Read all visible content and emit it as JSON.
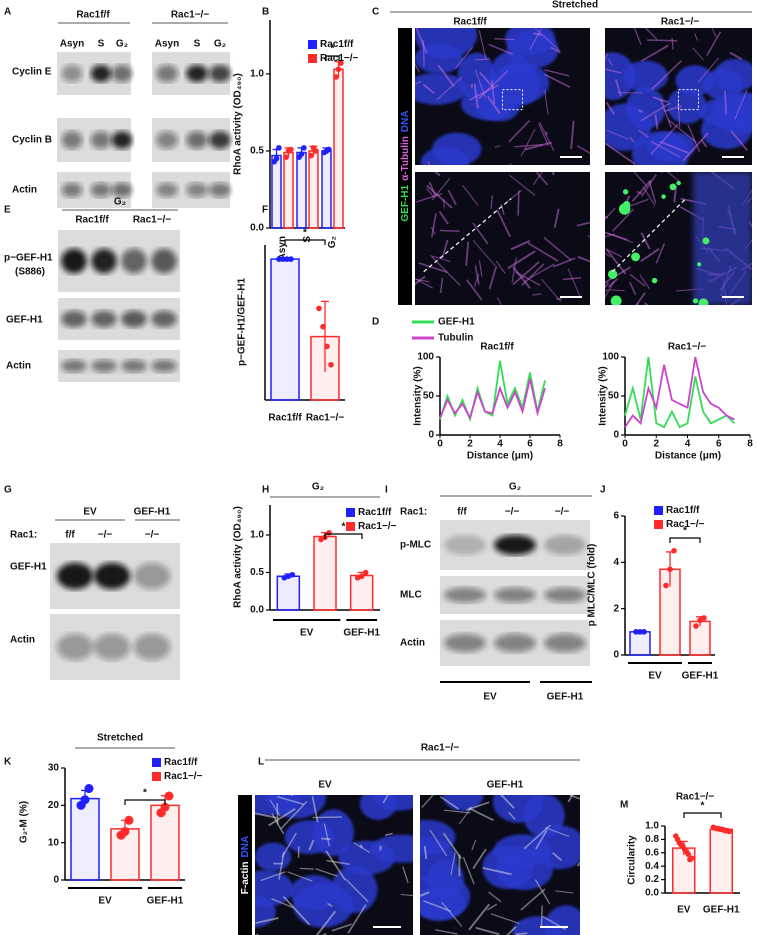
{
  "figure": {
    "panel_labels": [
      "A",
      "B",
      "C",
      "D",
      "E",
      "F",
      "G",
      "H",
      "I",
      "J",
      "K",
      "L",
      "M"
    ],
    "genotypes": {
      "wt": "Rac1f/f",
      "ko": "Rac1−/−"
    },
    "panel_A": {
      "lanes": [
        "Asyn",
        "S",
        "G₂"
      ],
      "rows": [
        "Cyclin E",
        "Cyclin B",
        "Actin"
      ]
    },
    "panel_C": {
      "header": "Stretched",
      "stain": [
        "GEF-H1",
        "α-Tubulin",
        "DNA"
      ]
    },
    "panel_E": {
      "header": "G₂",
      "rows": [
        "p−GEF-H1",
        "(S886)",
        "GEF-H1",
        "Actin"
      ]
    },
    "panel_G": {
      "groups": [
        "EV",
        "GEF-H1"
      ],
      "row_label": "Rac1:",
      "lanes": [
        "f/f",
        "−/−",
        "−/−"
      ],
      "rows": [
        "GEF-H1",
        "Actin"
      ]
    },
    "panel_I": {
      "header": "G₂",
      "row_label": "Rac1:",
      "lanes": [
        "f/f",
        "−/−",
        "−/−"
      ],
      "rows": [
        "p-MLC",
        "MLC",
        "Actin"
      ],
      "groups": [
        "EV",
        "GEF-H1"
      ]
    },
    "panel_L": {
      "header": "Rac1−/−",
      "columns": [
        "EV",
        "GEF-H1"
      ],
      "stain": [
        "F-actin",
        "DNA"
      ]
    }
  },
  "chart_data": [
    {
      "type": "bar",
      "categories": [
        "Asyn",
        "S",
        "G₂"
      ],
      "ylabel": "RhoA activity  (OD₄₉₀)",
      "ylim": [
        0,
        1.35
      ],
      "yticks": [
        {
          "value": 0,
          "label": "0.0"
        },
        {
          "value": 0.5,
          "label": "0.5"
        },
        {
          "value": 1,
          "label": "1.0"
        }
      ],
      "series": [
        {
          "name": "Rac1f/f",
          "color": "#1f1fff",
          "values": [
            0.47,
            0.49,
            0.5
          ],
          "errors": [
            0.04,
            0.03,
            0.02
          ],
          "points": [
            [
              0.43,
              0.45,
              0.52
            ],
            [
              0.46,
              0.48,
              0.52
            ],
            [
              0.49,
              0.5,
              0.51
            ]
          ]
        },
        {
          "name": "Rac1−/−",
          "color": "#ff2a2a",
          "values": [
            0.49,
            0.5,
            1.03
          ],
          "errors": [
            0.03,
            0.03,
            0.05
          ],
          "points": [
            [
              0.46,
              0.5,
              0.51
            ],
            [
              0.47,
              0.52,
              0.5
            ],
            [
              0.98,
              1.03,
              1.07
            ]
          ]
        }
      ],
      "annotations": [
        "*"
      ]
    },
    {
      "type": "line",
      "title": "Rac1f/f",
      "xlabel": "Distance (μm)",
      "ylabel": "Intensity (%)",
      "legend": true,
      "x": [
        0,
        0.5,
        1,
        1.5,
        2,
        2.5,
        3,
        3.5,
        4,
        4.5,
        5,
        5.5,
        6,
        6.5,
        7
      ],
      "xlim": [
        0,
        8
      ],
      "xticks": [
        0,
        2,
        4,
        6,
        8
      ],
      "ylim": [
        0,
        100
      ],
      "yticks": [
        0,
        50,
        100
      ],
      "series": [
        {
          "name": "GEF-H1",
          "color": "#33dd55",
          "values": [
            20,
            50,
            25,
            45,
            20,
            60,
            30,
            25,
            95,
            40,
            60,
            35,
            80,
            30,
            70
          ]
        },
        {
          "name": "Tubulin",
          "color": "#cc44cc",
          "values": [
            22,
            45,
            28,
            40,
            22,
            55,
            30,
            28,
            60,
            35,
            55,
            30,
            72,
            28,
            60
          ]
        }
      ]
    },
    {
      "type": "line",
      "title": "Rac1−/−",
      "xlabel": "Distance (μm)",
      "ylabel": "Intensity (%)",
      "legend": false,
      "x": [
        0,
        0.5,
        1,
        1.5,
        2,
        2.5,
        3,
        3.5,
        4,
        4.5,
        5,
        5.5,
        6,
        6.5,
        7
      ],
      "xlim": [
        0,
        8
      ],
      "xticks": [
        0,
        2,
        4,
        6,
        8
      ],
      "ylim": [
        0,
        100
      ],
      "yticks": [
        0,
        50,
        100
      ],
      "series": [
        {
          "name": "GEF-H1",
          "color": "#33dd55",
          "values": [
            25,
            60,
            20,
            100,
            15,
            10,
            30,
            10,
            15,
            75,
            30,
            15,
            20,
            25,
            15
          ]
        },
        {
          "name": "Tubulin",
          "color": "#cc44cc",
          "values": [
            10,
            25,
            15,
            60,
            35,
            90,
            45,
            40,
            35,
            100,
            55,
            40,
            35,
            25,
            20
          ]
        }
      ]
    },
    {
      "type": "bar",
      "categories": [
        "Rac1f/f",
        "Rac1−/−"
      ],
      "ylabel": "p−GEF-H1/GEF-H1",
      "ylim": [
        0,
        1.1
      ],
      "values": [
        1.0,
        0.45
      ],
      "errors": [
        0.0,
        0.25
      ],
      "colors": [
        "#1f1fff",
        "#ff2a2a"
      ],
      "points": [
        [
          1,
          1,
          1,
          1
        ],
        [
          0.65,
          0.52,
          0.38,
          0.25
        ]
      ],
      "annotations": [
        "*"
      ]
    },
    {
      "type": "bar",
      "title": "G₂",
      "categories": [
        null,
        null,
        null
      ],
      "groups": [
        {
          "label": "EV",
          "count": 2
        },
        {
          "label": "GEF-H1",
          "count": 1
        }
      ],
      "ylabel": "RhoA activity  (OD₄₉₀)",
      "ylim": [
        0,
        1.4
      ],
      "yticks": [
        {
          "value": 0,
          "label": "0.0"
        },
        {
          "value": 0.5,
          "label": "0.5"
        },
        {
          "value": 1,
          "label": "1.0"
        }
      ],
      "series": [
        {
          "name": "Rac1f/f",
          "color": "#1f1fff",
          "values": [
            0.45,
            null,
            null
          ],
          "errors": [
            0.03,
            null,
            null
          ],
          "points": [
            [
              0.43,
              0.45,
              0.47
            ],
            null,
            null
          ]
        },
        {
          "name": "Rac1−/−",
          "color": "#ff2a2a",
          "values": [
            null,
            0.98,
            0.46
          ],
          "errors": [
            null,
            0.05,
            0.04
          ],
          "points": [
            null,
            [
              0.94,
              0.97,
              1.03
            ],
            [
              0.43,
              0.45,
              0.5
            ]
          ]
        }
      ],
      "annotations": [
        "*"
      ]
    },
    {
      "type": "bar",
      "categories": [
        null,
        null,
        null
      ],
      "groups": [
        {
          "label": "EV",
          "count": 2
        },
        {
          "label": "GEF-H1",
          "count": 1
        }
      ],
      "ylabel": "p MLC/MLC (fold)",
      "ylim": [
        0,
        6
      ],
      "yticks": [
        0,
        2,
        4,
        6
      ],
      "series": [
        {
          "name": "Rac1f/f",
          "color": "#1f1fff",
          "values": [
            1.0,
            null,
            null
          ],
          "errors": [
            0.03,
            null,
            null
          ],
          "points": [
            [
              1,
              1,
              1
            ],
            null,
            null
          ]
        },
        {
          "name": "Rac1−/−",
          "color": "#ff2a2a",
          "values": [
            null,
            3.7,
            1.45
          ],
          "errors": [
            null,
            0.75,
            0.2
          ],
          "points": [
            null,
            [
              3.0,
              3.7,
              4.5
            ],
            [
              1.25,
              1.5,
              1.6
            ]
          ]
        }
      ],
      "annotations": [
        "*"
      ]
    },
    {
      "type": "bar",
      "title": "Stretched",
      "categories": [
        null,
        null,
        null
      ],
      "groups": [
        {
          "label": "EV",
          "count": 2
        },
        {
          "label": "GEF-H1",
          "count": 1
        }
      ],
      "ylabel": "G₂-M (%)",
      "ylim": [
        0,
        30
      ],
      "yticks": [
        0,
        10,
        20,
        30
      ],
      "series": [
        {
          "name": "Rac1f/f",
          "color": "#1f1fff",
          "values": [
            21.8,
            null,
            null
          ],
          "errors": [
            2.2,
            null,
            null
          ],
          "points": [
            [
              20,
              21.5,
              24.5
            ],
            null,
            null
          ]
        },
        {
          "name": "Rac1−/−",
          "color": "#ff2a2a",
          "values": [
            null,
            13.7,
            20.0
          ],
          "errors": [
            null,
            2.3,
            2.6
          ],
          "points": [
            null,
            [
              12,
              13,
              16
            ],
            [
              18,
              19.5,
              22.5
            ]
          ]
        }
      ],
      "annotations": [
        "*"
      ]
    },
    {
      "type": "bar",
      "title": "Rac1−/−",
      "categories": [
        "EV",
        "GEF-H1"
      ],
      "ylabel": "Circularity",
      "ylim": [
        0,
        1
      ],
      "yticks": [
        {
          "value": 0,
          "label": "0.0"
        },
        {
          "value": 0.2,
          "label": "0.2"
        },
        {
          "value": 0.4,
          "label": "0.4"
        },
        {
          "value": 0.6,
          "label": "0.6"
        },
        {
          "value": 0.8,
          "label": "0.8"
        },
        {
          "value": 1,
          "label": "1.0"
        }
      ],
      "values": [
        0.67,
        0.95
      ],
      "errors": [
        0.1,
        0.02
      ],
      "colors": [
        "#ff2a2a",
        "#ff2a2a"
      ],
      "points": [
        [
          0.85,
          0.8,
          0.75,
          0.72,
          0.7,
          0.65,
          0.62,
          0.58,
          0.5,
          0.52
        ],
        [
          0.98,
          0.97,
          0.96,
          0.96,
          0.95,
          0.95,
          0.94,
          0.93,
          0.93,
          0.92
        ]
      ],
      "annotations": [
        "*"
      ]
    }
  ]
}
